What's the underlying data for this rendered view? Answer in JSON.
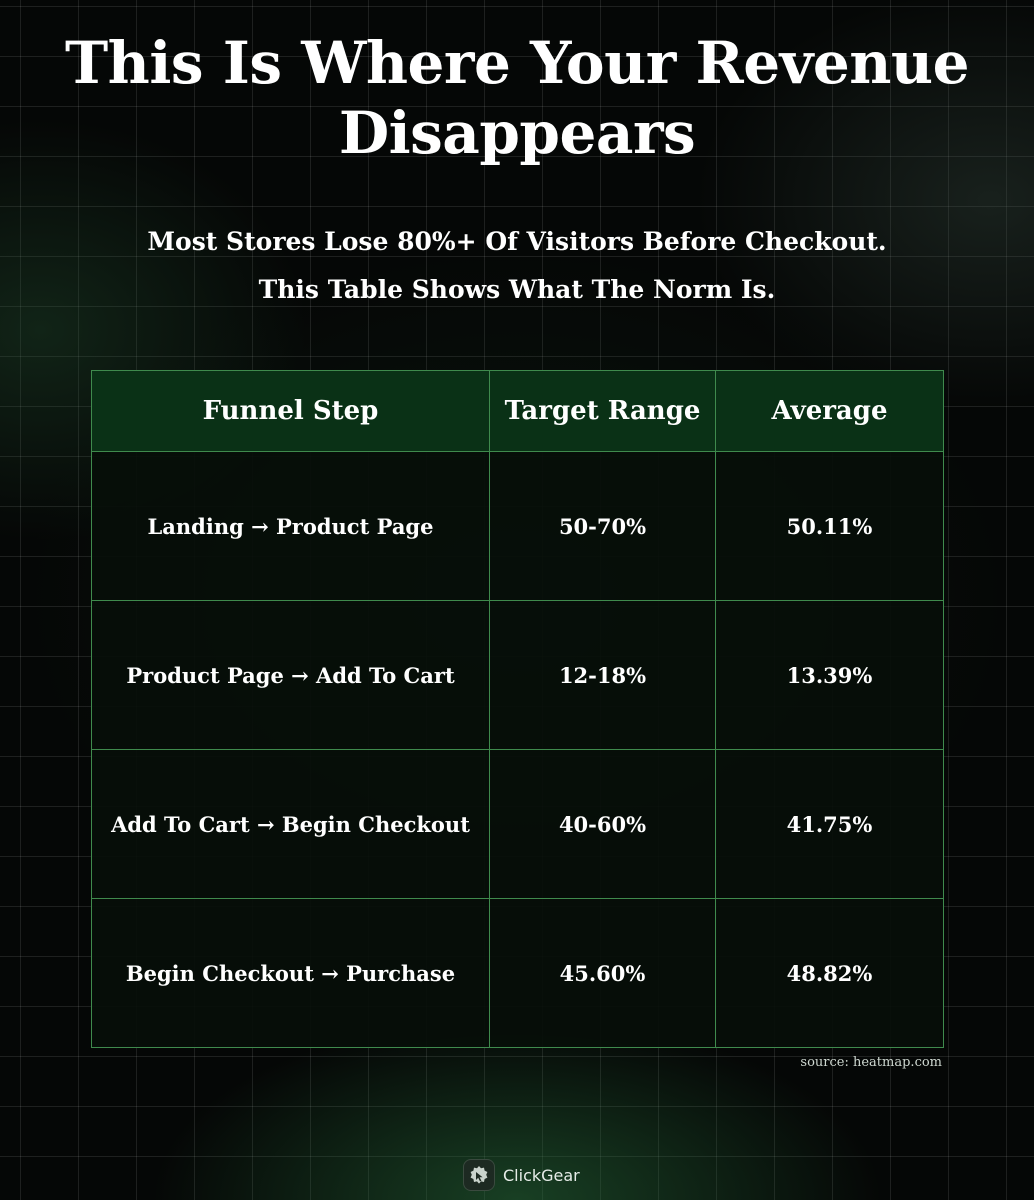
{
  "title": "This Is Where Your Revenue Disappears",
  "subtitle_lines": [
    "Most Stores Lose 80%+ Of Visitors Before Checkout.",
    "This Table Shows What The Norm Is."
  ],
  "table": {
    "headers": [
      "Funnel Step",
      "Target Range",
      "Average"
    ],
    "rows": [
      [
        "Landing → Product Page",
        "50-70%",
        "50.11%"
      ],
      [
        "Product Page → Add To Cart",
        "12-18%",
        "13.39%"
      ],
      [
        "Add To Cart → Begin Checkout",
        "40-60%",
        "41.75%"
      ],
      [
        "Begin Checkout → Purchase",
        "45.60%",
        "48.82%"
      ]
    ]
  },
  "source": "source: heatmap.com",
  "brand": {
    "name": "ClickGear",
    "icon": "clickgear-logo-icon"
  },
  "colors": {
    "background": "#050706",
    "header_fill": "#0a3116",
    "border": "#3f8a4d"
  }
}
